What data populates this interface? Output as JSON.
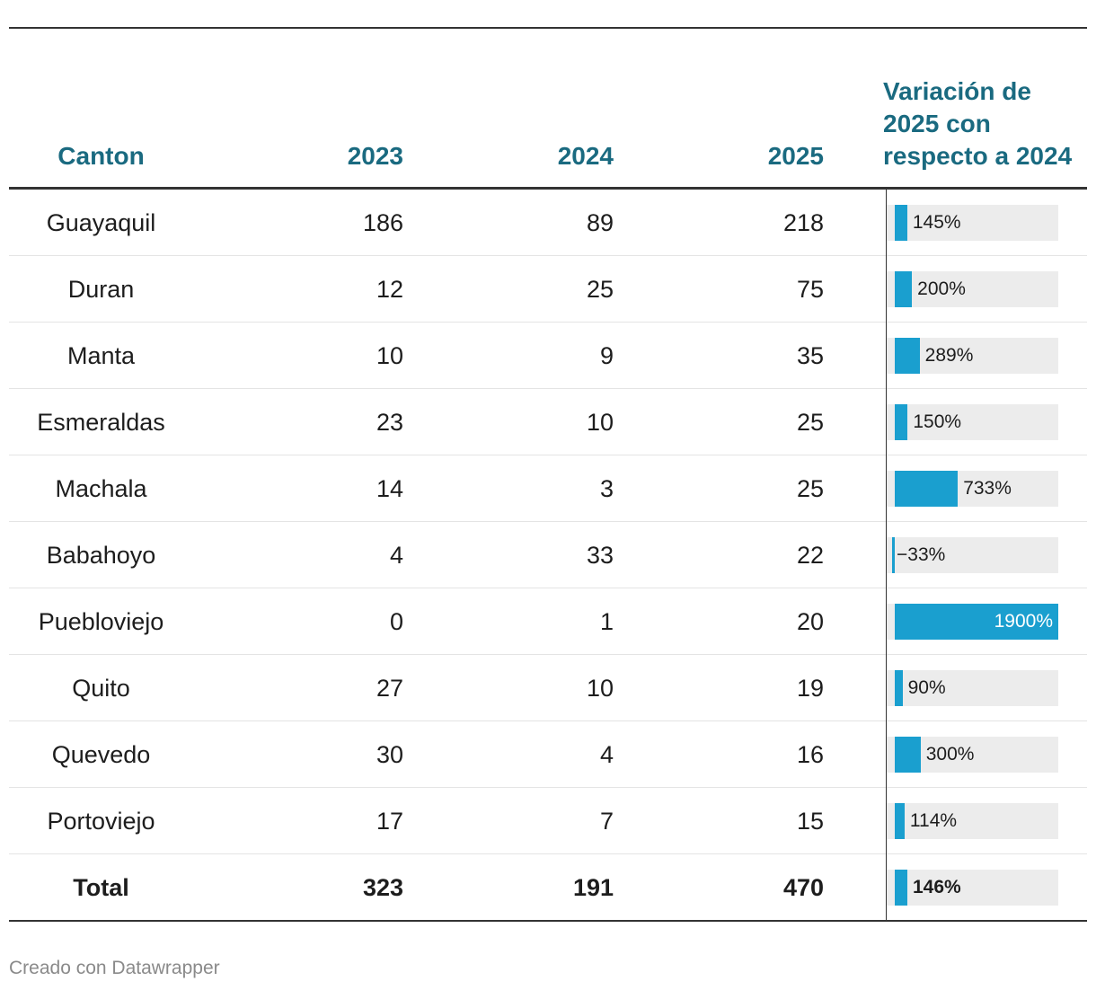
{
  "table": {
    "headers": {
      "canton": "Canton",
      "y2023": "2023",
      "y2024": "2024",
      "y2025": "2025",
      "variation": "Variación de 2025 con respecto a 2024"
    },
    "rows": [
      {
        "canton": "Guayaquil",
        "y2023": "186",
        "y2024": "89",
        "y2025": "218",
        "variation_label": "145%"
      },
      {
        "canton": "Duran",
        "y2023": "12",
        "y2024": "25",
        "y2025": "75",
        "variation_label": "200%"
      },
      {
        "canton": "Manta",
        "y2023": "10",
        "y2024": "9",
        "y2025": "35",
        "variation_label": "289%"
      },
      {
        "canton": "Esmeraldas",
        "y2023": "23",
        "y2024": "10",
        "y2025": "25",
        "variation_label": "150%"
      },
      {
        "canton": "Machala",
        "y2023": "14",
        "y2024": "3",
        "y2025": "25",
        "variation_label": "733%"
      },
      {
        "canton": "Babahoyo",
        "y2023": "4",
        "y2024": "33",
        "y2025": "22",
        "variation_label": "−33%"
      },
      {
        "canton": "Puebloviejo",
        "y2023": "0",
        "y2024": "1",
        "y2025": "20",
        "variation_label": "1900%"
      },
      {
        "canton": "Quito",
        "y2023": "27",
        "y2024": "10",
        "y2025": "19",
        "variation_label": "90%"
      },
      {
        "canton": "Quevedo",
        "y2023": "30",
        "y2024": "4",
        "y2025": "16",
        "variation_label": "300%"
      },
      {
        "canton": "Portoviejo",
        "y2023": "17",
        "y2024": "7",
        "y2025": "15",
        "variation_label": "114%"
      },
      {
        "canton": "Total",
        "y2023": "323",
        "y2024": "191",
        "y2025": "470",
        "variation_label": "146%"
      }
    ]
  },
  "chart_data": {
    "type": "table",
    "title": "",
    "columns": [
      "Canton",
      "2023",
      "2024",
      "2025",
      "Variación de 2025 con respecto a 2024"
    ],
    "categories": [
      "Guayaquil",
      "Duran",
      "Manta",
      "Esmeraldas",
      "Machala",
      "Babahoyo",
      "Puebloviejo",
      "Quito",
      "Quevedo",
      "Portoviejo",
      "Total"
    ],
    "series": [
      {
        "name": "2023",
        "values": [
          186,
          12,
          10,
          23,
          14,
          4,
          0,
          27,
          30,
          17,
          323
        ]
      },
      {
        "name": "2024",
        "values": [
          89,
          25,
          9,
          10,
          3,
          33,
          1,
          10,
          4,
          7,
          191
        ]
      },
      {
        "name": "2025",
        "values": [
          218,
          75,
          35,
          25,
          25,
          22,
          20,
          19,
          16,
          15,
          470
        ]
      },
      {
        "name": "Variación de 2025 con respecto a 2024",
        "values": [
          145,
          200,
          289,
          150,
          733,
          -33,
          1900,
          90,
          300,
          114,
          146
        ],
        "unit": "%"
      }
    ],
    "bar_range": [
      -50,
      1900
    ]
  },
  "colors": {
    "header": "#1a6a80",
    "bar": "#1a9fcf",
    "bar_background": "#ececec",
    "credit": "#8a8a8a"
  },
  "footer": {
    "credit": "Creado con Datawrapper"
  }
}
